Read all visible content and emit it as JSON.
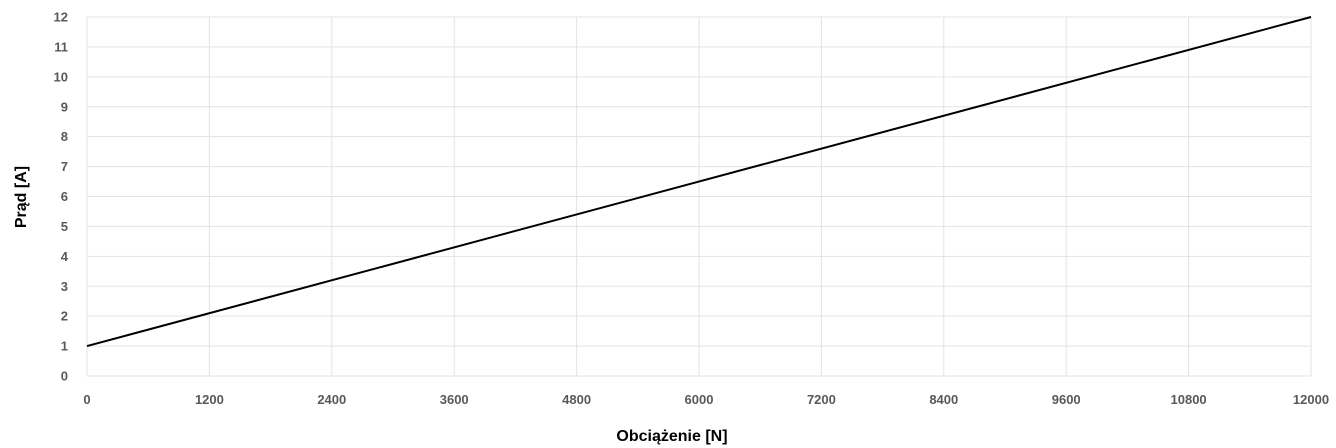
{
  "chart_data": {
    "type": "line",
    "title": "",
    "xlabel": "Obciążenie [N]",
    "ylabel": "Prąd [A]",
    "xlim": [
      0,
      12000
    ],
    "ylim": [
      0,
      12
    ],
    "x_ticks": [
      0,
      1200,
      2400,
      3600,
      4800,
      6000,
      7200,
      8400,
      9600,
      10800,
      12000
    ],
    "y_ticks": [
      0,
      1,
      2,
      3,
      4,
      5,
      6,
      7,
      8,
      9,
      10,
      11,
      12
    ],
    "grid": true,
    "legend": "none",
    "series": [
      {
        "x": [
          0,
          12000
        ],
        "y": [
          1,
          12
        ],
        "color": "#000000"
      }
    ],
    "colors": {
      "grid": "#e3e3e3",
      "tick_text": "#595959",
      "line": "#000000"
    }
  }
}
